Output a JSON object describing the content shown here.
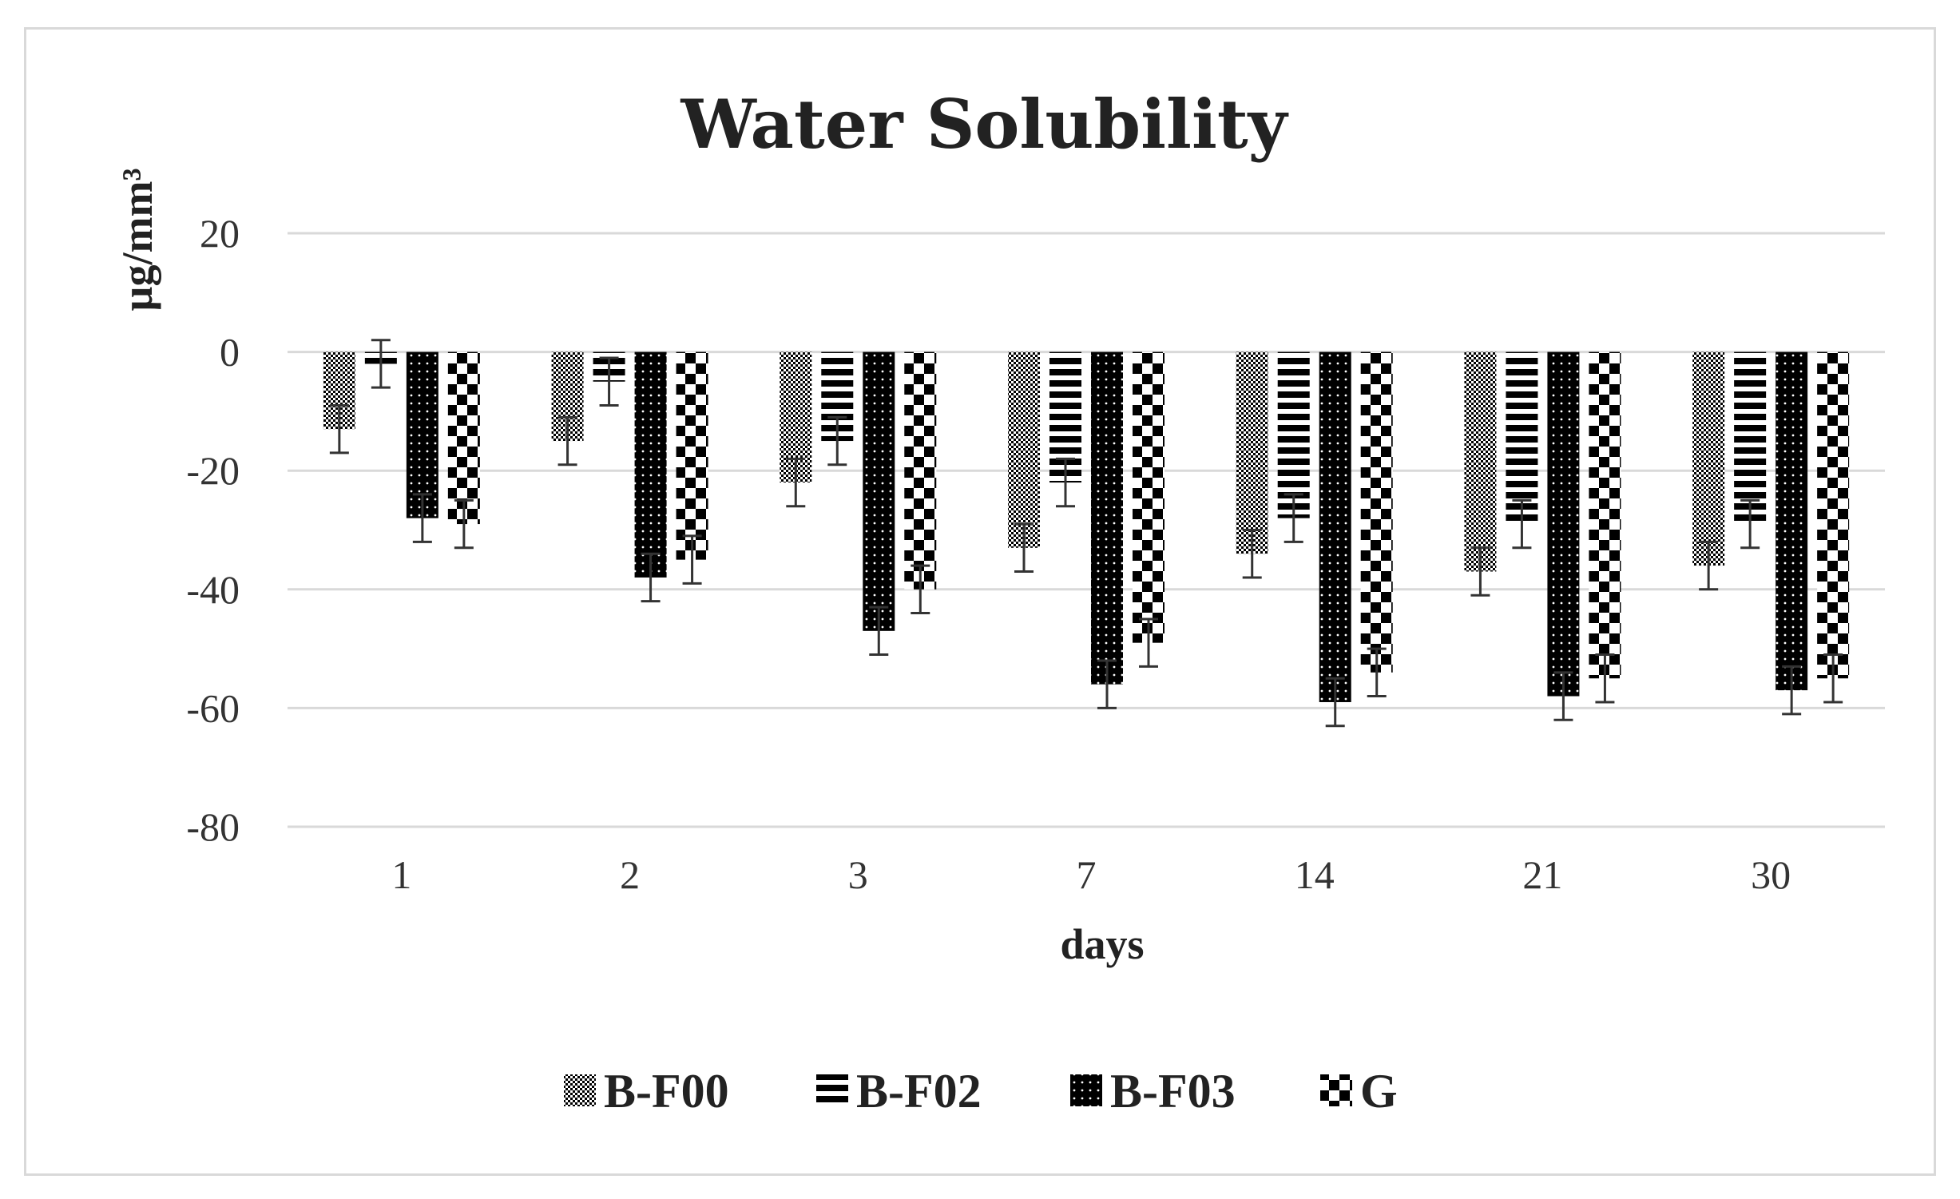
{
  "chart_data": {
    "type": "bar",
    "title": "Water Solubility",
    "xlabel": "days",
    "ylabel": "µg/mm³",
    "ylim": [
      -80,
      20
    ],
    "yticks": [
      20,
      0,
      -20,
      -40,
      -60,
      -80
    ],
    "grid": true,
    "legend_position": "bottom",
    "categories": [
      "1",
      "2",
      "3",
      "7",
      "14",
      "21",
      "30"
    ],
    "series": [
      {
        "name": "B-F00",
        "pattern": "checker",
        "values": [
          -13,
          -15,
          -22,
          -33,
          -34,
          -37,
          -36
        ],
        "errors": [
          4,
          4,
          4,
          4,
          4,
          4,
          4
        ]
      },
      {
        "name": "B-F02",
        "pattern": "hlines",
        "values": [
          -2,
          -5,
          -15,
          -22,
          -28,
          -29,
          -29
        ],
        "errors": [
          4,
          4,
          4,
          4,
          4,
          4,
          4
        ]
      },
      {
        "name": "B-F03",
        "pattern": "dots",
        "values": [
          -28,
          -38,
          -47,
          -56,
          -59,
          -58,
          -57
        ],
        "errors": [
          4,
          4,
          4,
          4,
          4,
          4,
          4
        ]
      },
      {
        "name": "G",
        "pattern": "bigchecker",
        "values": [
          -29,
          -35,
          -40,
          -49,
          -54,
          -55,
          -55
        ],
        "errors": [
          4,
          4,
          4,
          4,
          4,
          4,
          4
        ]
      }
    ]
  },
  "colors": {
    "grid": "#d9d9d9",
    "bar": "#000000",
    "error": "#333333"
  }
}
